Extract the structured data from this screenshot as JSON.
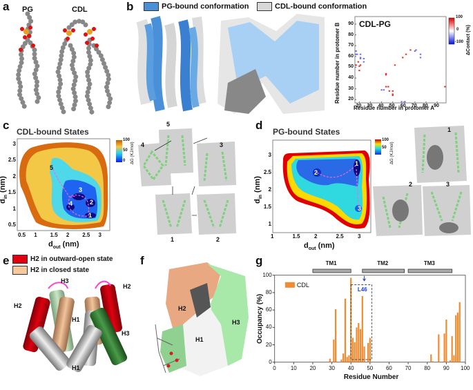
{
  "panels": {
    "a": {
      "label": "a",
      "molecules": [
        "PG",
        "CDL"
      ]
    },
    "b": {
      "label": "b",
      "legend": [
        {
          "label": "PG-bound conformation",
          "color": "#4a90d9"
        },
        {
          "label": "CDL-bound conformation",
          "color": "#d9d9d9"
        }
      ]
    },
    "c": {
      "label": "c",
      "title": "CDL-bound States",
      "xlabel": "d",
      "xlabel_sub": "out",
      "xlabel_unit": " (nm)",
      "ylabel": "d",
      "ylabel_sub": "in",
      "ylabel_unit": " (nm)",
      "xticks": [
        "0.5",
        "1",
        "1.5",
        "2",
        "2.5",
        "3"
      ],
      "yticks": [
        "0.5",
        "1",
        "1.5",
        "2",
        "2.5",
        "3"
      ],
      "colorbar": {
        "ticks": [
          "100",
          "50",
          "0"
        ],
        "label": "ΔG (KJ/mol)"
      },
      "states": [
        "1",
        "2",
        "3",
        "4",
        "5"
      ],
      "snapshots": [
        "4",
        "5",
        "3",
        "1",
        "2"
      ]
    },
    "d": {
      "label": "d",
      "title": "PG-bound States",
      "xlabel": "d",
      "xlabel_sub": "out",
      "xlabel_unit": " (nm)",
      "ylabel": "d",
      "ylabel_sub": "in",
      "ylabel_unit": " (nm)",
      "xticks": [
        "1",
        "1.5",
        "2",
        "2.5",
        "3"
      ],
      "yticks": [
        "1",
        "1.5",
        "2",
        "2.5",
        "3"
      ],
      "colorbar": {
        "ticks": [
          "100",
          "50"
        ],
        "label": "ΔG (KJ/mol)"
      },
      "states": [
        "1",
        "2",
        "3"
      ],
      "snapshots": [
        "1",
        "2",
        "3"
      ]
    },
    "e": {
      "label": "e",
      "legend": [
        {
          "label": "H2 in outward-open state",
          "color": "#e00010"
        },
        {
          "label": "H2 in closed state",
          "color": "#f7c89b"
        }
      ],
      "helix_labels": [
        "H3",
        "H2",
        "H2",
        "H1",
        "H3",
        "H1"
      ]
    },
    "f": {
      "label": "f",
      "helix_labels": [
        "H2",
        "H3",
        "H1"
      ]
    },
    "g": {
      "label": "g"
    }
  },
  "chart_data": [
    {
      "type": "heatmap",
      "panel": "b",
      "title": "CDL-PG",
      "xlabel": "Residue number in protomer A",
      "ylabel": "Residue number in protomer B",
      "xlim": [
        16,
        98
      ],
      "ylim": [
        17,
        97
      ],
      "xticks": [
        20,
        30,
        40,
        50,
        60,
        70,
        80,
        90
      ],
      "yticks": [
        20,
        30,
        40,
        50,
        60,
        70,
        80,
        90
      ],
      "colorbar": {
        "label": "ΔContact (%)",
        "ticks": [
          "100",
          "0",
          "-100"
        ],
        "range": [
          -100,
          100
        ]
      },
      "points_positive": [
        [
          17,
          52
        ],
        [
          19,
          55
        ],
        [
          20,
          51
        ],
        [
          21,
          52
        ],
        [
          20,
          47
        ],
        [
          44,
          43
        ],
        [
          44,
          44
        ],
        [
          44,
          32
        ],
        [
          46,
          32
        ],
        [
          47,
          28
        ],
        [
          50,
          28
        ],
        [
          50,
          25
        ],
        [
          50,
          24
        ],
        [
          52,
          52
        ],
        [
          59,
          59
        ],
        [
          62,
          62
        ],
        [
          66,
          66
        ],
        [
          97,
          32
        ]
      ],
      "points_negative": [
        [
          17,
          65
        ],
        [
          17,
          62
        ],
        [
          18,
          62
        ],
        [
          21,
          62
        ],
        [
          21,
          59
        ],
        [
          21,
          58
        ],
        [
          24,
          58
        ],
        [
          24,
          55
        ],
        [
          40,
          29
        ],
        [
          42,
          29
        ],
        [
          58,
          18
        ],
        [
          61,
          18
        ],
        [
          70,
          65
        ],
        [
          71,
          66
        ],
        [
          75,
          62
        ],
        [
          75,
          59
        ]
      ]
    },
    {
      "type": "bar",
      "panel": "g",
      "xlabel": "Residue Number",
      "ylabel": "Occupancy (%)",
      "xlim": [
        0,
        100
      ],
      "ylim": [
        0,
        100
      ],
      "xticks": [
        0,
        10,
        20,
        30,
        40,
        50,
        60,
        70,
        80,
        90,
        100
      ],
      "yticks": [
        0,
        20,
        40,
        60,
        80,
        100
      ],
      "legend": "top-left",
      "series": [
        {
          "name": "CDL",
          "color": "#f28b30",
          "x": [
            29,
            31,
            32,
            35,
            36,
            37,
            38,
            39,
            40,
            41,
            42,
            43,
            44,
            45,
            46,
            47,
            49,
            50,
            82,
            83,
            86,
            89,
            90,
            92,
            93,
            94,
            95,
            96,
            97
          ],
          "values": [
            4,
            26,
            61,
            3,
            10,
            73,
            6,
            8,
            97,
            28,
            23,
            40,
            45,
            38,
            76,
            18,
            22,
            28,
            9,
            1,
            32,
            33,
            49,
            2,
            30,
            8,
            54,
            57,
            69
          ]
        }
      ],
      "segments": [
        {
          "label": "TM1",
          "start": 20,
          "end": 40
        },
        {
          "label": "TM2",
          "start": 46,
          "end": 68
        },
        {
          "label": "TM3",
          "start": 70,
          "end": 93
        }
      ],
      "annotation": {
        "label": "L46",
        "box_x": [
          40,
          51
        ],
        "box_y": [
          3,
          89
        ],
        "arrow_x": 47,
        "color": "#1a3fe0"
      }
    }
  ]
}
